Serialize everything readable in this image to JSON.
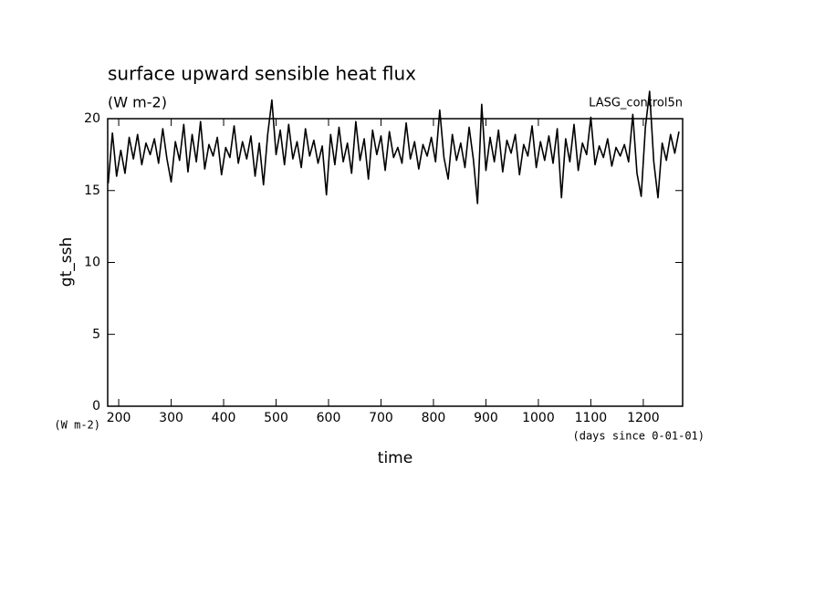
{
  "chart_data": {
    "type": "line",
    "title": "surface upward sensible heat flux",
    "subtitle": "(W m-2)",
    "annotation": "LASG_control5n",
    "y_label": "gt_ssh",
    "y_unit_label": "(W m-2)",
    "x_label": "time",
    "x_unit_label": "(days since 0-01-01)",
    "xlim": [
      179,
      1275
    ],
    "ylim": [
      0,
      20
    ],
    "xticks": [
      200,
      300,
      400,
      500,
      600,
      700,
      800,
      900,
      1000,
      1100,
      1200
    ],
    "yticks": [
      0,
      5,
      10,
      15,
      20
    ],
    "x": [
      180,
      188,
      196,
      204,
      212,
      220,
      228,
      236,
      244,
      252,
      260,
      268,
      276,
      284,
      292,
      300,
      308,
      316,
      324,
      332,
      340,
      348,
      356,
      364,
      372,
      380,
      388,
      396,
      404,
      412,
      420,
      428,
      436,
      444,
      452,
      460,
      468,
      476,
      484,
      492,
      500,
      508,
      516,
      524,
      532,
      540,
      548,
      556,
      564,
      572,
      580,
      588,
      596,
      604,
      612,
      620,
      628,
      636,
      644,
      652,
      660,
      668,
      676,
      684,
      692,
      700,
      708,
      716,
      724,
      732,
      740,
      748,
      756,
      764,
      772,
      780,
      788,
      796,
      804,
      812,
      820,
      828,
      836,
      844,
      852,
      860,
      868,
      876,
      884,
      892,
      900,
      908,
      916,
      924,
      932,
      940,
      948,
      956,
      964,
      972,
      980,
      988,
      996,
      1004,
      1012,
      1020,
      1028,
      1036,
      1044,
      1052,
      1060,
      1068,
      1076,
      1084,
      1092,
      1100,
      1108,
      1116,
      1124,
      1132,
      1140,
      1148,
      1156,
      1164,
      1172,
      1180,
      1188,
      1196,
      1204,
      1212,
      1220,
      1228,
      1236,
      1244,
      1252,
      1260,
      1268
    ],
    "series": [
      {
        "color": "#000000",
        "values": [
          15.5,
          19.0,
          16.0,
          17.8,
          16.2,
          18.7,
          17.2,
          18.9,
          16.8,
          18.3,
          17.5,
          18.6,
          16.9,
          19.3,
          17.2,
          15.6,
          18.4,
          17.1,
          19.6,
          16.3,
          18.9,
          17.0,
          19.8,
          16.5,
          18.2,
          17.4,
          18.7,
          16.1,
          18.0,
          17.3,
          19.5,
          16.9,
          18.4,
          17.2,
          18.8,
          16.0,
          18.3,
          15.4,
          18.9,
          21.3,
          17.5,
          19.2,
          16.8,
          19.6,
          17.2,
          18.4,
          16.6,
          19.3,
          17.4,
          18.5,
          16.9,
          18.1,
          14.7,
          18.9,
          16.8,
          19.4,
          17.0,
          18.3,
          16.2,
          19.8,
          17.1,
          18.6,
          15.8,
          19.2,
          17.5,
          18.8,
          16.4,
          19.1,
          17.3,
          18.0,
          16.9,
          19.7,
          17.2,
          18.4,
          16.5,
          18.2,
          17.4,
          18.7,
          17.0,
          20.6,
          17.3,
          15.8,
          18.9,
          17.1,
          18.3,
          16.6,
          19.4,
          17.2,
          14.1,
          21.0,
          16.4,
          18.7,
          17.0,
          19.2,
          16.3,
          18.5,
          17.6,
          18.9,
          16.1,
          18.2,
          17.4,
          19.5,
          16.6,
          18.4,
          17.1,
          18.8,
          16.9,
          19.3,
          14.5,
          18.6,
          17.0,
          19.6,
          16.4,
          18.3,
          17.5,
          20.1,
          16.8,
          18.1,
          17.3,
          18.6,
          16.7,
          18.0,
          17.4,
          18.2,
          17.0,
          20.3,
          16.2,
          14.6,
          19.4,
          21.9,
          17.0,
          14.5,
          18.3,
          17.1,
          18.9,
          17.6,
          19.1
        ]
      }
    ]
  }
}
